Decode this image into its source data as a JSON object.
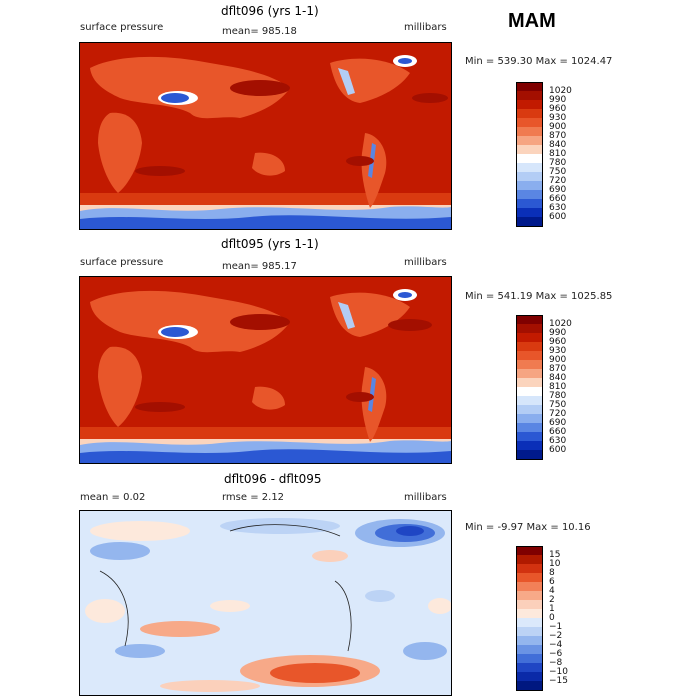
{
  "season": "MAM",
  "panels": [
    {
      "title": "dflt096 (yrs 1-1)",
      "left_label": "surface pressure",
      "center_label": "mean= 985.18",
      "right_label": "millibars",
      "minmax": "Min = 539.30 Max = 1024.47",
      "kind": "abs"
    },
    {
      "title": "dflt095 (yrs 1-1)",
      "left_label": "surface pressure",
      "center_label": "mean= 985.17",
      "right_label": "millibars",
      "minmax": "Min = 541.19 Max = 1025.85",
      "kind": "abs"
    },
    {
      "title": "dflt096 - dflt095",
      "left_label": "mean =    0.02",
      "center_label": "rmse =    2.12",
      "right_label": "millibars",
      "minmax": "Min =  -9.97 Max =  10.16",
      "kind": "diff"
    }
  ],
  "colorbar_abs": {
    "labels": [
      "1020",
      "990",
      "960",
      "930",
      "900",
      "870",
      "840",
      "810",
      "780",
      "750",
      "720",
      "690",
      "660",
      "630",
      "600"
    ],
    "colors": [
      "#7f0000",
      "#a30f00",
      "#c21a00",
      "#d93a10",
      "#e8562a",
      "#f07b50",
      "#f6a582",
      "#fbd4bd",
      "#ffffff",
      "#d6e6fb",
      "#b3cdf5",
      "#8aaeee",
      "#5a86e3",
      "#2b58d3",
      "#0a2fb8",
      "#001a8c"
    ]
  },
  "colorbar_diff": {
    "labels": [
      "15",
      "10",
      "8",
      "6",
      "4",
      "2",
      "1",
      "0",
      "−1",
      "−2",
      "−4",
      "−6",
      "−8",
      "−10",
      "−15"
    ],
    "colors": [
      "#7f0000",
      "#b01a00",
      "#d23210",
      "#e8562a",
      "#f28058",
      "#f7a988",
      "#fbd0bb",
      "#fde9dc",
      "#dbe9fb",
      "#bcd3f5",
      "#94b6ee",
      "#6a93e4",
      "#416ed8",
      "#1f46c4",
      "#0a2aa8",
      "#001880"
    ]
  }
}
